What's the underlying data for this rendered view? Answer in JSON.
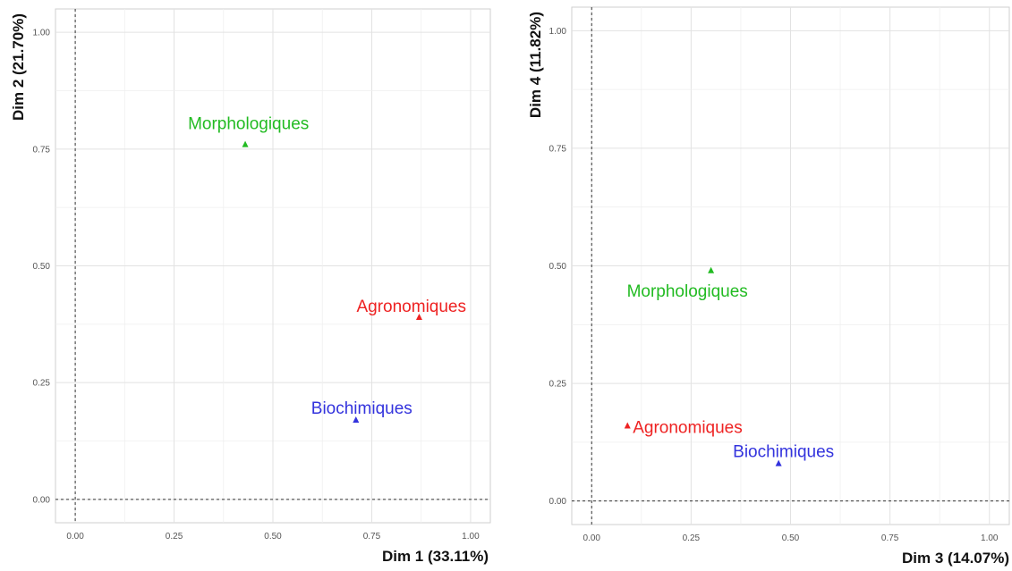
{
  "chart_data": [
    {
      "type": "scatter",
      "xlabel": "Dim 1 (33.11%)",
      "ylabel": "Dim 2 (21.70%)",
      "xlim": [
        -0.05,
        1.05
      ],
      "ylim": [
        -0.05,
        1.05
      ],
      "x_ticks": [
        "0.00",
        "0.25",
        "0.50",
        "0.75",
        "1.00"
      ],
      "y_ticks": [
        "0.00",
        "0.25",
        "0.50",
        "0.75",
        "1.00"
      ],
      "grid": true,
      "reference_lines": {
        "x": 0,
        "y": 0,
        "style": "dashed"
      },
      "points": [
        {
          "label": "Morphologiques",
          "x": 0.43,
          "y": 0.76,
          "color": "#22bb22"
        },
        {
          "label": "Agronomiques",
          "x": 0.87,
          "y": 0.39,
          "color": "#ee2222"
        },
        {
          "label": "Biochimiques",
          "x": 0.71,
          "y": 0.17,
          "color": "#3333dd"
        }
      ]
    },
    {
      "type": "scatter",
      "xlabel": "Dim 3 (14.07%)",
      "ylabel": "Dim 4 (11.82%)",
      "xlim": [
        -0.05,
        1.05
      ],
      "ylim": [
        -0.05,
        1.05
      ],
      "x_ticks": [
        "0.00",
        "0.25",
        "0.50",
        "0.75",
        "1.00"
      ],
      "y_ticks": [
        "0.00",
        "0.25",
        "0.50",
        "0.75",
        "1.00"
      ],
      "grid": true,
      "reference_lines": {
        "x": 0,
        "y": 0,
        "style": "dashed"
      },
      "points": [
        {
          "label": "Morphologiques",
          "x": 0.3,
          "y": 0.49,
          "color": "#22bb22"
        },
        {
          "label": "Agronomiques",
          "x": 0.09,
          "y": 0.16,
          "color": "#ee2222"
        },
        {
          "label": "Biochimiques",
          "x": 0.47,
          "y": 0.08,
          "color": "#3333dd"
        }
      ]
    }
  ]
}
